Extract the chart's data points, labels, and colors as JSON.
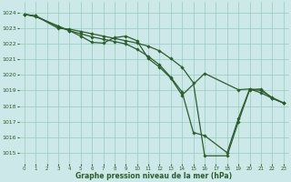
{
  "title": "Graphe pression niveau de la mer (hPa)",
  "bg": "#cce8e8",
  "grid_color": "#99ccbb",
  "lc": "#2d5c2d",
  "xlim": [
    -0.5,
    23.5
  ],
  "ylim": [
    1014.3,
    1024.7
  ],
  "xticks": [
    0,
    1,
    2,
    3,
    4,
    5,
    6,
    7,
    8,
    9,
    10,
    11,
    12,
    13,
    14,
    15,
    16,
    17,
    18,
    19,
    20,
    21,
    22,
    23
  ],
  "yticks": [
    1015,
    1016,
    1017,
    1018,
    1019,
    1020,
    1021,
    1022,
    1023,
    1024
  ],
  "line1_x": [
    0,
    1,
    3,
    4,
    5,
    6,
    7,
    8,
    9,
    10,
    11,
    12,
    13,
    14,
    15,
    16,
    18,
    19,
    20,
    21,
    22,
    23
  ],
  "line1_y": [
    1023.9,
    1023.8,
    1023.0,
    1022.95,
    1022.8,
    1022.65,
    1022.5,
    1022.35,
    1022.2,
    1022.05,
    1021.85,
    1021.55,
    1021.05,
    1020.5,
    1019.5,
    1014.8,
    1014.8,
    1017.0,
    1019.05,
    1019.1,
    1018.5,
    1018.2
  ],
  "line2_x": [
    0,
    1,
    3,
    4,
    5,
    6,
    7,
    8,
    9,
    10,
    11,
    12,
    13,
    14,
    15,
    16,
    18,
    19,
    20,
    21,
    22,
    23
  ],
  "line2_y": [
    1023.9,
    1023.8,
    1023.1,
    1022.85,
    1022.65,
    1022.45,
    1022.3,
    1022.15,
    1022.0,
    1021.65,
    1021.2,
    1020.65,
    1019.85,
    1018.9,
    1016.3,
    1016.1,
    1015.0,
    1017.2,
    1019.1,
    1019.0,
    1018.55,
    1018.2
  ],
  "line3_x": [
    0,
    1,
    3,
    4,
    5,
    6,
    7,
    8,
    9,
    10,
    11,
    12,
    13,
    14,
    16,
    19,
    20,
    21,
    22,
    23
  ],
  "line3_y": [
    1023.9,
    1023.75,
    1023.15,
    1022.85,
    1022.5,
    1022.1,
    1022.05,
    1022.4,
    1022.5,
    1022.2,
    1021.05,
    1020.5,
    1019.8,
    1018.7,
    1020.1,
    1019.05,
    1019.1,
    1018.85,
    1018.5,
    1018.2
  ]
}
